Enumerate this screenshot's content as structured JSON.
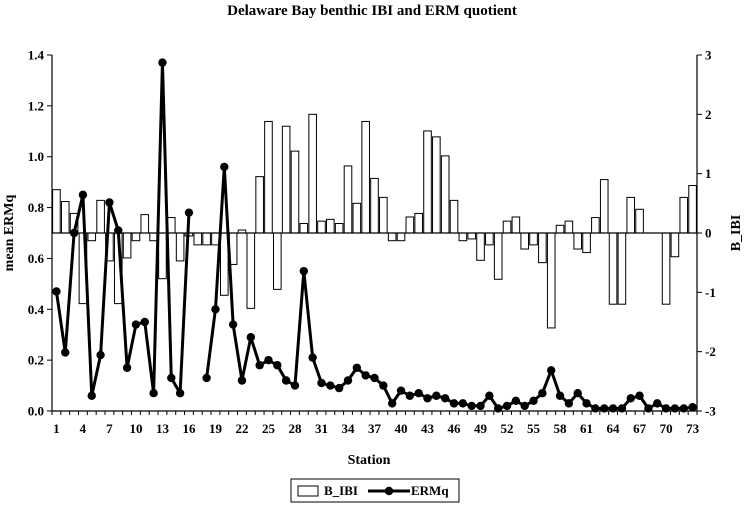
{
  "chart_data": {
    "type": "bar+line",
    "title": "Delaware Bay benthic IBI and ERM quotient",
    "xlabel": "Station",
    "ylabel_left": "mean ERMq",
    "ylabel_right": "B_IBI",
    "ylim_left": [
      0,
      1.4
    ],
    "ylim_right": [
      -3,
      3
    ],
    "yticks_left": [
      "0.0",
      "0.2",
      "0.4",
      "0.6",
      "0.8",
      "1.0",
      "1.2",
      "1.4"
    ],
    "yticks_right": [
      "-3",
      "-2",
      "-1",
      "0",
      "1",
      "2",
      "3"
    ],
    "xticks": [
      "1",
      "4",
      "7",
      "10",
      "13",
      "16",
      "19",
      "22",
      "25",
      "28",
      "31",
      "34",
      "37",
      "40",
      "43",
      "46",
      "49",
      "52",
      "55",
      "58",
      "61",
      "64",
      "67",
      "70",
      "73"
    ],
    "grid": false,
    "legend_position": "bottom-center",
    "series": [
      {
        "name": "B_IBI",
        "kind": "bar",
        "axis": "right",
        "fill": "#ffffff",
        "values": [
          0.73,
          0.53,
          0.33,
          -1.19,
          -0.13,
          0.55,
          -0.47,
          -1.19,
          -0.42,
          -0.13,
          0.31,
          -0.13,
          -0.77,
          0.26,
          -0.47,
          -0.05,
          -0.2,
          -0.2,
          -0.2,
          -1.05,
          -0.53,
          0.05,
          -1.27,
          0.95,
          1.88,
          -0.95,
          1.8,
          1.38,
          0.16,
          2.0,
          0.2,
          0.23,
          0.16,
          1.13,
          0.5,
          1.88,
          0.92,
          0.6,
          -0.13,
          -0.13,
          0.27,
          0.33,
          1.72,
          1.62,
          1.3,
          0.55,
          -0.13,
          -0.1,
          -0.46,
          -0.2,
          -0.78,
          0.2,
          0.27,
          -0.27,
          -0.2,
          -0.5,
          -1.6,
          0.13,
          0.2,
          -0.27,
          -0.33,
          0.26,
          0.9,
          -1.2,
          -1.2,
          0.6,
          0.4,
          0.0,
          0.0,
          -1.2,
          -0.4,
          0.6,
          0.8
        ]
      },
      {
        "name": "ERMq",
        "kind": "line",
        "axis": "left",
        "color": "#000000",
        "segments": [
          {
            "x": [
              1,
              2,
              3,
              4,
              5,
              6,
              7,
              8,
              9,
              10,
              11,
              12,
              13,
              14,
              15,
              16
            ],
            "y": [
              0.47,
              0.23,
              0.7,
              0.85,
              0.06,
              0.22,
              0.82,
              0.71,
              0.17,
              0.34,
              0.35,
              0.07,
              1.37,
              0.13,
              0.07,
              0.78
            ]
          },
          {
            "x": [
              18,
              19,
              20,
              21,
              22,
              23,
              24,
              25,
              26,
              27,
              28,
              29,
              30,
              31,
              32,
              33,
              34,
              35,
              36,
              37,
              38,
              39,
              40,
              41,
              42,
              43,
              44,
              45,
              46,
              47,
              48,
              49,
              50,
              51,
              52,
              53,
              54,
              55,
              56,
              57,
              58,
              59,
              60,
              61,
              62,
              63,
              64,
              65,
              66,
              67,
              68,
              69,
              70,
              71,
              72,
              73
            ],
            "y": [
              0.13,
              0.4,
              0.96,
              0.34,
              0.12,
              0.29,
              0.18,
              0.2,
              0.18,
              0.12,
              0.1,
              0.55,
              0.21,
              0.11,
              0.1,
              0.09,
              0.12,
              0.17,
              0.14,
              0.13,
              0.1,
              0.03,
              0.08,
              0.06,
              0.07,
              0.05,
              0.06,
              0.05,
              0.03,
              0.03,
              0.02,
              0.02,
              0.06,
              0.01,
              0.02,
              0.04,
              0.02,
              0.04,
              0.07,
              0.16,
              0.06,
              0.03,
              0.07,
              0.03,
              0.01,
              0.01,
              0.01,
              0.01,
              0.05,
              0.06,
              0.01,
              0.03,
              0.01,
              0.01,
              0.01,
              0.015
            ]
          }
        ]
      }
    ]
  }
}
